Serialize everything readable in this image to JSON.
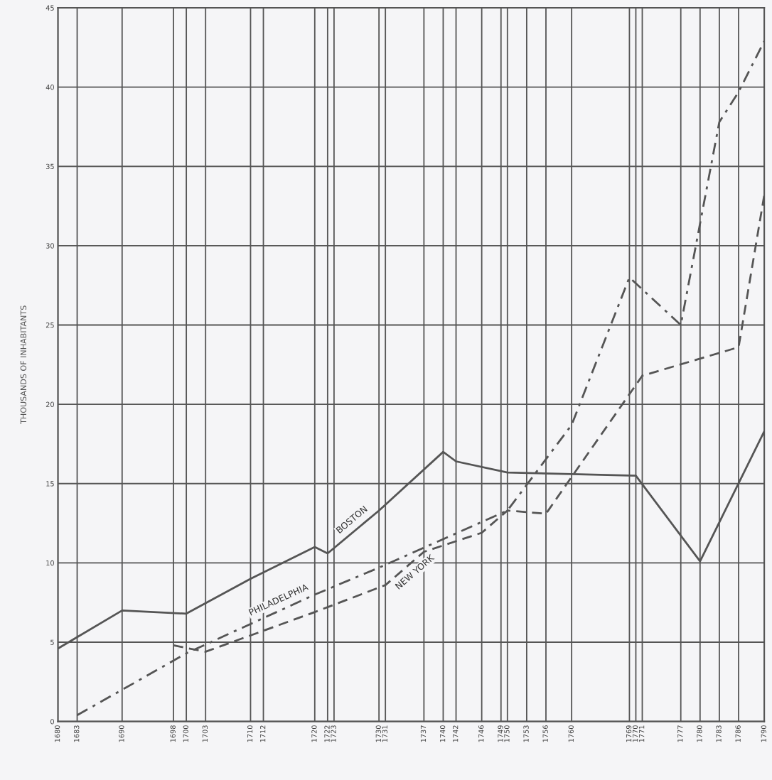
{
  "chart_data": {
    "type": "line",
    "ylabel": "THOUSANDS OF INHABITANTS",
    "xlim": [
      1680,
      1790
    ],
    "xticks": [
      1680,
      1683,
      1690,
      1698,
      1700,
      1703,
      1710,
      1712,
      1720,
      1722,
      1723,
      1730,
      1731,
      1737,
      1740,
      1742,
      1746,
      1749,
      1750,
      1753,
      1756,
      1760,
      1769,
      1770,
      1771,
      1777,
      1780,
      1783,
      1786,
      1790
    ],
    "ylim": [
      0,
      45
    ],
    "yticks": [
      0,
      5,
      10,
      15,
      20,
      25,
      30,
      35,
      40,
      45
    ],
    "grid": true,
    "legend": false,
    "series": [
      {
        "name": "BOSTON",
        "color": "#555555",
        "line_style": "solid",
        "x": [
          1680,
          1690,
          1700,
          1710,
          1720,
          1722,
          1730,
          1740,
          1742,
          1750,
          1760,
          1770,
          1780,
          1790
        ],
        "values": [
          4.6,
          7.0,
          6.8,
          9.0,
          11.0,
          10.6,
          13.3,
          17.0,
          16.4,
          15.7,
          15.6,
          15.5,
          10.1,
          18.3
        ]
      },
      {
        "name": "PHILADELPHIA",
        "color": "#555555",
        "line_style": "dashdot",
        "x": [
          1683,
          1690,
          1700,
          1720,
          1730,
          1740,
          1750,
          1760,
          1769,
          1777,
          1783,
          1786,
          1790
        ],
        "values": [
          0.4,
          2.0,
          4.3,
          8.0,
          9.7,
          11.5,
          13.3,
          18.7,
          28.0,
          25.0,
          37.8,
          39.7,
          42.9
        ]
      },
      {
        "name": "NEW YORK",
        "color": "#555555",
        "line_style": "dashed",
        "x": [
          1698,
          1703,
          1720,
          1731,
          1737,
          1746,
          1750,
          1756,
          1771,
          1786,
          1790
        ],
        "values": [
          4.8,
          4.4,
          6.9,
          8.6,
          10.7,
          11.9,
          13.3,
          13.1,
          21.8,
          23.6,
          33.2
        ]
      }
    ]
  }
}
